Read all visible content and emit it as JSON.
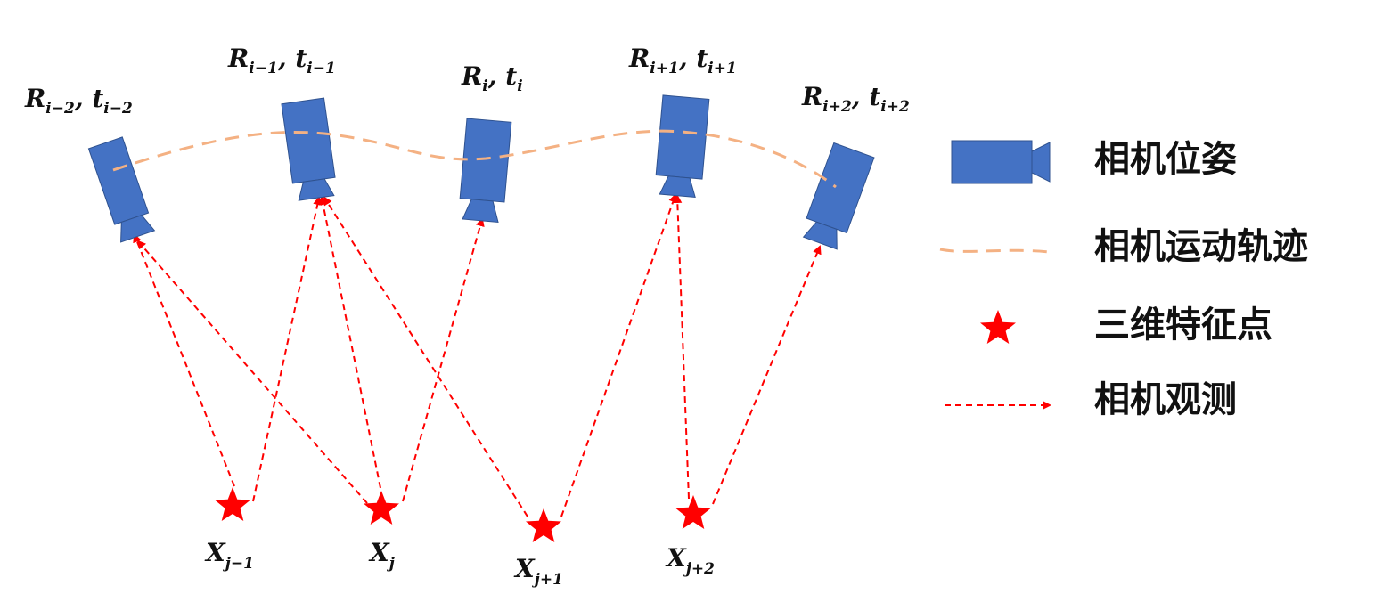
{
  "colors": {
    "camera": "#4472c4",
    "camera_stroke": "#2f528f",
    "trajectory": "#f4b183",
    "observation": "#ff0000",
    "feature": "#ff0000"
  },
  "cameras": [
    {
      "sym": "R",
      "sub1": "i−2",
      "sep": ", ",
      "sym2": "t",
      "sub2": "i−2"
    },
    {
      "sym": "R",
      "sub1": "i−1",
      "sep": ", ",
      "sym2": "t",
      "sub2": "i−1"
    },
    {
      "sym": "R",
      "sub1": "i",
      "sep": ", ",
      "sym2": "t",
      "sub2": "i"
    },
    {
      "sym": "R",
      "sub1": "i+1",
      "sep": ", ",
      "sym2": "t",
      "sub2": "i+1"
    },
    {
      "sym": "R",
      "sub1": "i+2",
      "sep": ", ",
      "sym2": "t",
      "sub2": "i+2"
    }
  ],
  "points": [
    {
      "sym": "X",
      "sub": "j−1"
    },
    {
      "sym": "X",
      "sub": "j"
    },
    {
      "sym": "X",
      "sub": "j+1"
    },
    {
      "sym": "X",
      "sub": "j+2"
    }
  ],
  "legend": [
    {
      "icon": "camera-icon",
      "label": "相机位姿"
    },
    {
      "icon": "trajectory-icon",
      "label": "相机运动轨迹"
    },
    {
      "icon": "star-icon",
      "label": "三维特征点"
    },
    {
      "icon": "arrow-icon",
      "label": "相机观测"
    }
  ]
}
